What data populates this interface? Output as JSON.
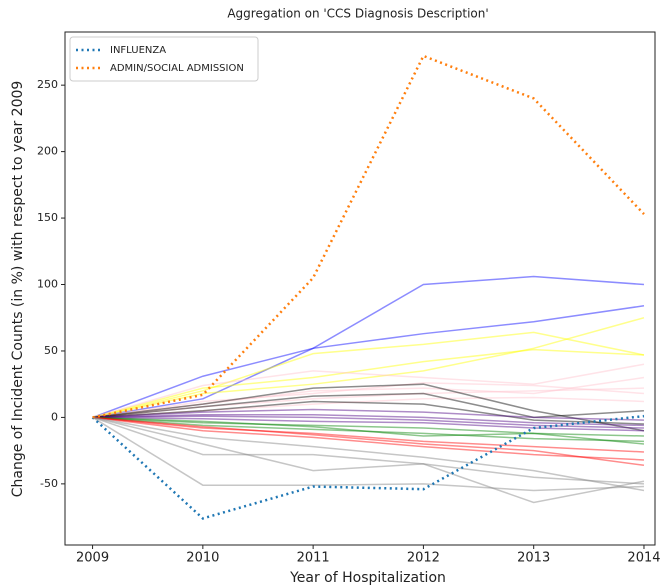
{
  "chart_data": {
    "type": "line",
    "title": "Aggregation on 'CCS Diagnosis Description'",
    "xlabel": "Year of Hospitalization",
    "ylabel": "Change of Incident Counts (in %) with respect to year 2009",
    "x": [
      2009,
      2010,
      2011,
      2012,
      2013,
      2014
    ],
    "xlim": [
      2008.75,
      2014.1
    ],
    "xticks": [
      2009,
      2010,
      2011,
      2012,
      2013,
      2014
    ],
    "ylim": [
      -96,
      290
    ],
    "yticks": [
      -50,
      0,
      50,
      100,
      150,
      200,
      250
    ],
    "legend": "upper left",
    "series": [
      {
        "color": "#0000ff",
        "values": [
          0,
          31,
          52,
          100,
          106,
          100
        ]
      },
      {
        "color": "#0000ff",
        "values": [
          0,
          14,
          52,
          63,
          72,
          84
        ]
      },
      {
        "color": "#ffff00",
        "values": [
          0,
          20,
          48,
          55,
          64,
          47
        ]
      },
      {
        "color": "#ffff00",
        "values": [
          0,
          18,
          25,
          35,
          52,
          75
        ]
      },
      {
        "color": "#ffff00",
        "values": [
          0,
          22,
          30,
          42,
          51,
          47
        ]
      },
      {
        "color": "#ffc0cb",
        "values": [
          0,
          24,
          35,
          30,
          25,
          40
        ]
      },
      {
        "color": "#ffc0cb",
        "values": [
          0,
          10,
          20,
          22,
          18,
          30
        ]
      },
      {
        "color": "#ffc0cb",
        "values": [
          0,
          8,
          14,
          18,
          20,
          22
        ]
      },
      {
        "color": "#ffc0cb",
        "values": [
          0,
          5,
          10,
          14,
          15,
          12
        ]
      },
      {
        "color": "#ffc0cb",
        "values": [
          0,
          12,
          18,
          26,
          24,
          18
        ]
      },
      {
        "color": "#000000",
        "values": [
          0,
          10,
          22,
          25,
          5,
          -10
        ]
      },
      {
        "color": "#000000",
        "values": [
          0,
          8,
          16,
          18,
          0,
          5
        ]
      },
      {
        "color": "#000000",
        "values": [
          0,
          5,
          12,
          10,
          -2,
          -5
        ]
      },
      {
        "color": "#4b0082",
        "values": [
          0,
          4,
          6,
          4,
          0,
          -2
        ]
      },
      {
        "color": "#4b0082",
        "values": [
          0,
          2,
          2,
          0,
          -4,
          -6
        ]
      },
      {
        "color": "#4b0082",
        "values": [
          0,
          1,
          0,
          -2,
          -6,
          -8
        ]
      },
      {
        "color": "#4b0082",
        "values": [
          0,
          -1,
          -3,
          -4,
          -8,
          -10
        ]
      },
      {
        "color": "#008000",
        "values": [
          0,
          -4,
          -6,
          -8,
          -12,
          -14
        ]
      },
      {
        "color": "#008000",
        "values": [
          0,
          -6,
          -9,
          -12,
          -16,
          -18
        ]
      },
      {
        "color": "#008000",
        "values": [
          0,
          -3,
          -7,
          -14,
          -12,
          -20
        ]
      },
      {
        "color": "#ff0000",
        "values": [
          0,
          -8,
          -12,
          -18,
          -22,
          -26
        ]
      },
      {
        "color": "#ff0000",
        "values": [
          0,
          -10,
          -15,
          -22,
          -28,
          -32
        ]
      },
      {
        "color": "#ff0000",
        "values": [
          0,
          -7,
          -13,
          -20,
          -25,
          -36
        ]
      },
      {
        "color": "#808080",
        "values": [
          0,
          -28,
          -28,
          -35,
          -45,
          -50
        ]
      },
      {
        "color": "#808080",
        "values": [
          0,
          -51,
          -51,
          -50,
          -55,
          -52
        ]
      },
      {
        "color": "#808080",
        "values": [
          0,
          -20,
          -40,
          -35,
          -64,
          -48
        ]
      },
      {
        "color": "#808080",
        "values": [
          0,
          -15,
          -22,
          -30,
          -40,
          -55
        ]
      },
      {
        "name": "INFLUENZA",
        "color": "#1f77b4",
        "linestyle": "dotted",
        "values": [
          0,
          -76,
          -52,
          -54,
          -8,
          1
        ]
      },
      {
        "name": "ADMIN/SOCIAL ADMISSION",
        "color": "#ff7f0e",
        "linestyle": "dotted",
        "values": [
          0,
          17,
          105,
          272,
          240,
          153
        ]
      }
    ]
  }
}
